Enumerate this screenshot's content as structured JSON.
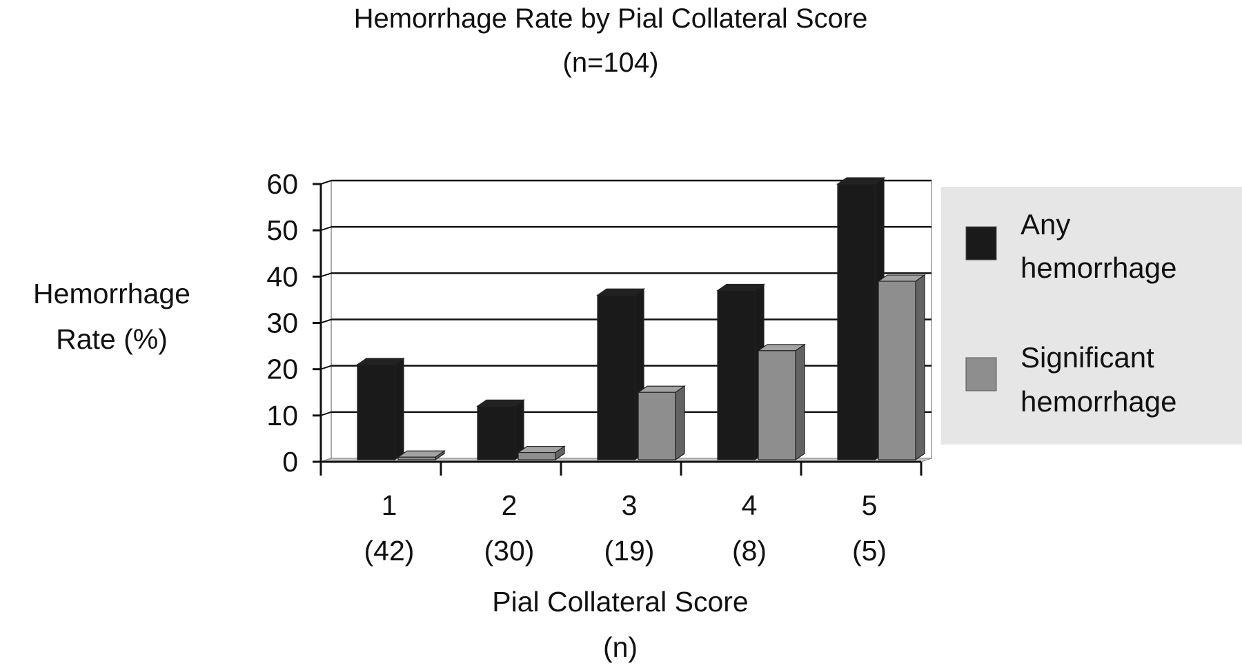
{
  "chart_data": {
    "type": "bar",
    "title": "Hemorrhage Rate by Pial Collateral Score",
    "subtitle": "(n=104)",
    "xlabel": [
      "Pial Collateral Score",
      "(n)"
    ],
    "ylabel": [
      "Hemorrhage",
      "Rate (%)"
    ],
    "ylim": [
      0,
      60
    ],
    "yticks": [
      0,
      10,
      20,
      30,
      40,
      50,
      60
    ],
    "grid": true,
    "legend_position": "right",
    "categories": [
      {
        "score": "1",
        "n": "(42)"
      },
      {
        "score": "2",
        "n": "(30)"
      },
      {
        "score": "3",
        "n": "(19)"
      },
      {
        "score": "4",
        "n": "(8)"
      },
      {
        "score": "5",
        "n": "(5)"
      }
    ],
    "series": [
      {
        "name": [
          "Any",
          "hemorrhage"
        ],
        "color": "#1a1a1a",
        "values": [
          21,
          12,
          36,
          37,
          60
        ]
      },
      {
        "name": [
          "Significant",
          "hemorrhage"
        ],
        "color": "#8e8e8e",
        "values": [
          1,
          2,
          15,
          24,
          39
        ]
      }
    ],
    "colors": {
      "legend_background": "#e6e6e6",
      "floor": "#c8c8c8",
      "axis": "#111111"
    }
  }
}
